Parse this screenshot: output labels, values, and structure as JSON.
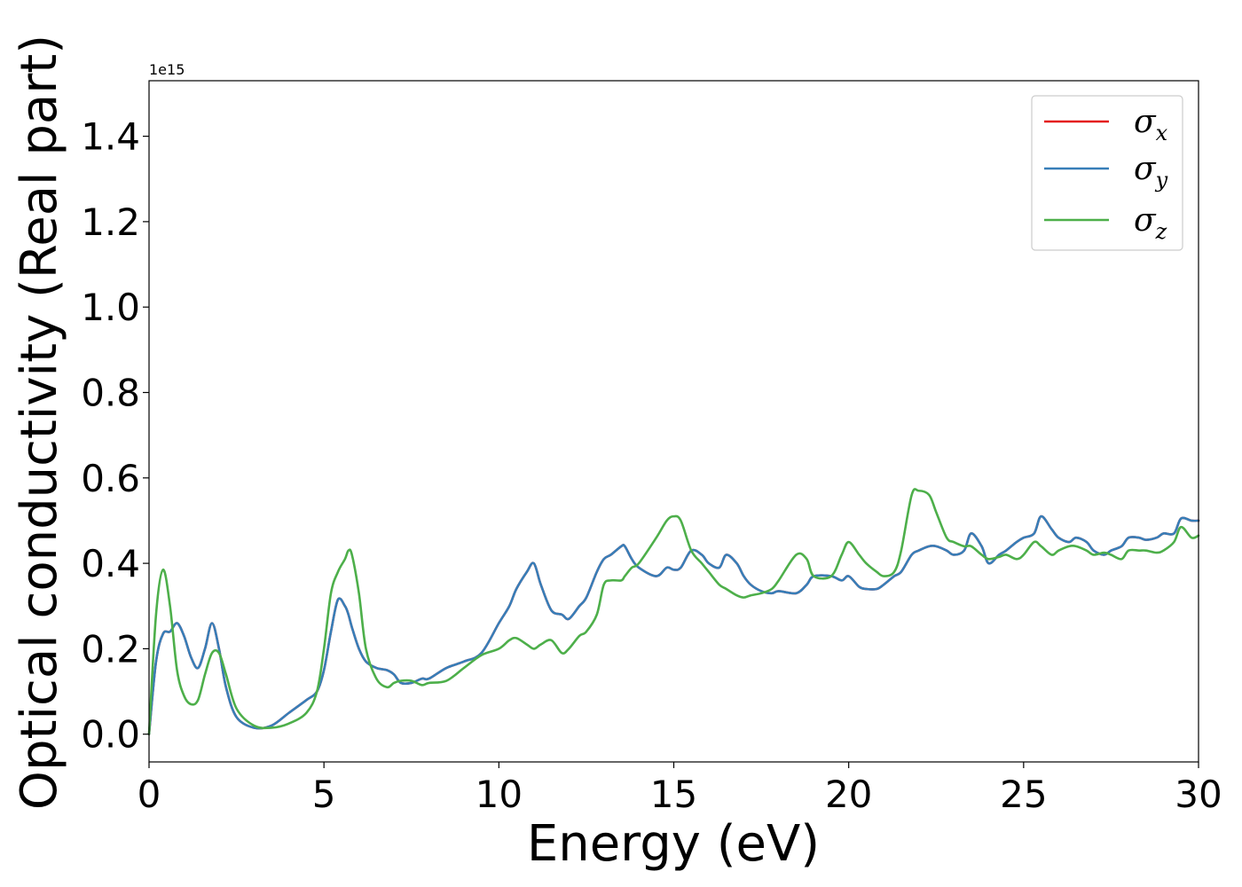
{
  "chart_data": {
    "type": "line",
    "title": "",
    "xlabel": "Energy (eV)",
    "ylabel": "Optical conductivity (Real part)",
    "y_offset_label": "1e15",
    "xlim": [
      0,
      30
    ],
    "ylim": [
      -0.065,
      1.53
    ],
    "x_ticks": [
      0,
      5,
      10,
      15,
      20,
      25,
      30
    ],
    "x_tick_labels": [
      "0",
      "5",
      "10",
      "15",
      "20",
      "25",
      "30"
    ],
    "y_ticks": [
      0.0,
      0.2,
      0.4,
      0.6,
      0.8,
      1.0,
      1.2,
      1.4
    ],
    "y_tick_labels": [
      "0.0",
      "0.2",
      "0.4",
      "0.6",
      "0.8",
      "1.0",
      "1.2",
      "1.4"
    ],
    "grid": false,
    "legend_position": "top-right",
    "x": [
      0,
      0.2,
      0.4,
      0.6,
      0.8,
      1.0,
      1.2,
      1.4,
      1.6,
      1.8,
      2.0,
      2.2,
      2.5,
      3.0,
      3.5,
      4.0,
      4.5,
      4.8,
      5.0,
      5.2,
      5.4,
      5.6,
      5.7,
      5.8,
      6.0,
      6.2,
      6.5,
      6.8,
      7.0,
      7.2,
      7.5,
      7.8,
      8.0,
      8.5,
      9.0,
      9.5,
      10.0,
      10.3,
      10.5,
      10.8,
      11.0,
      11.2,
      11.5,
      11.8,
      12.0,
      12.3,
      12.5,
      12.8,
      13.0,
      13.2,
      13.5,
      13.6,
      13.8,
      14.0,
      14.5,
      14.8,
      15.0,
      15.2,
      15.5,
      15.8,
      16.0,
      16.3,
      16.5,
      16.8,
      17.0,
      17.2,
      17.5,
      17.8,
      18.0,
      18.5,
      18.8,
      19.0,
      19.5,
      19.8,
      20.0,
      20.3,
      20.5,
      20.8,
      21.0,
      21.3,
      21.5,
      21.8,
      22.0,
      22.3,
      22.5,
      22.8,
      23.0,
      23.3,
      23.5,
      23.8,
      24.0,
      24.3,
      24.5,
      24.8,
      25.0,
      25.3,
      25.5,
      25.8,
      26.0,
      26.3,
      26.5,
      26.8,
      27.0,
      27.3,
      27.5,
      27.8,
      28.0,
      28.3,
      28.5,
      28.8,
      29.0,
      29.3,
      29.5,
      29.8,
      30.0
    ],
    "series": [
      {
        "name": "σx",
        "color": "#e41a1c",
        "values": [
          0.0,
          0.17,
          0.235,
          0.24,
          0.26,
          0.23,
          0.18,
          0.155,
          0.2,
          0.26,
          0.2,
          0.11,
          0.04,
          0.015,
          0.02,
          0.05,
          0.08,
          0.1,
          0.15,
          0.24,
          0.315,
          0.3,
          0.28,
          0.25,
          0.2,
          0.17,
          0.155,
          0.15,
          0.14,
          0.12,
          0.12,
          0.13,
          0.13,
          0.155,
          0.17,
          0.19,
          0.26,
          0.3,
          0.34,
          0.38,
          0.4,
          0.35,
          0.29,
          0.28,
          0.27,
          0.3,
          0.32,
          0.38,
          0.41,
          0.42,
          0.44,
          0.44,
          0.41,
          0.39,
          0.37,
          0.39,
          0.385,
          0.39,
          0.43,
          0.42,
          0.4,
          0.39,
          0.42,
          0.4,
          0.37,
          0.35,
          0.335,
          0.33,
          0.335,
          0.33,
          0.35,
          0.37,
          0.37,
          0.36,
          0.37,
          0.345,
          0.34,
          0.34,
          0.35,
          0.37,
          0.38,
          0.42,
          0.43,
          0.44,
          0.44,
          0.43,
          0.42,
          0.43,
          0.47,
          0.44,
          0.4,
          0.42,
          0.43,
          0.45,
          0.46,
          0.47,
          0.51,
          0.48,
          0.46,
          0.45,
          0.46,
          0.45,
          0.43,
          0.42,
          0.43,
          0.44,
          0.46,
          0.46,
          0.455,
          0.46,
          0.47,
          0.47,
          0.505,
          0.5,
          0.5
        ]
      },
      {
        "name": "σy",
        "color": "#377eb8",
        "values": [
          0.0,
          0.17,
          0.235,
          0.24,
          0.26,
          0.23,
          0.18,
          0.155,
          0.2,
          0.26,
          0.2,
          0.11,
          0.04,
          0.015,
          0.02,
          0.05,
          0.08,
          0.1,
          0.15,
          0.24,
          0.315,
          0.3,
          0.28,
          0.25,
          0.2,
          0.17,
          0.155,
          0.15,
          0.14,
          0.12,
          0.12,
          0.13,
          0.13,
          0.155,
          0.17,
          0.19,
          0.26,
          0.3,
          0.34,
          0.38,
          0.4,
          0.35,
          0.29,
          0.28,
          0.27,
          0.3,
          0.32,
          0.38,
          0.41,
          0.42,
          0.44,
          0.44,
          0.41,
          0.39,
          0.37,
          0.39,
          0.385,
          0.39,
          0.43,
          0.42,
          0.4,
          0.39,
          0.42,
          0.4,
          0.37,
          0.35,
          0.335,
          0.33,
          0.335,
          0.33,
          0.35,
          0.37,
          0.37,
          0.36,
          0.37,
          0.345,
          0.34,
          0.34,
          0.35,
          0.37,
          0.38,
          0.42,
          0.43,
          0.44,
          0.44,
          0.43,
          0.42,
          0.43,
          0.47,
          0.44,
          0.4,
          0.42,
          0.43,
          0.45,
          0.46,
          0.47,
          0.51,
          0.48,
          0.46,
          0.45,
          0.46,
          0.45,
          0.43,
          0.42,
          0.43,
          0.44,
          0.46,
          0.46,
          0.455,
          0.46,
          0.47,
          0.47,
          0.505,
          0.5,
          0.5
        ]
      },
      {
        "name": "σz",
        "color": "#4daf4a",
        "values": [
          0.0,
          0.28,
          0.385,
          0.3,
          0.15,
          0.09,
          0.07,
          0.08,
          0.14,
          0.19,
          0.19,
          0.14,
          0.06,
          0.02,
          0.015,
          0.025,
          0.05,
          0.1,
          0.2,
          0.33,
          0.38,
          0.41,
          0.43,
          0.42,
          0.33,
          0.2,
          0.13,
          0.11,
          0.12,
          0.125,
          0.125,
          0.115,
          0.12,
          0.125,
          0.155,
          0.185,
          0.2,
          0.22,
          0.225,
          0.21,
          0.2,
          0.21,
          0.22,
          0.19,
          0.2,
          0.23,
          0.24,
          0.28,
          0.35,
          0.36,
          0.36,
          0.37,
          0.39,
          0.4,
          0.46,
          0.5,
          0.51,
          0.5,
          0.43,
          0.4,
          0.38,
          0.35,
          0.34,
          0.325,
          0.32,
          0.325,
          0.33,
          0.34,
          0.36,
          0.42,
          0.41,
          0.37,
          0.37,
          0.42,
          0.45,
          0.42,
          0.4,
          0.38,
          0.37,
          0.38,
          0.43,
          0.56,
          0.57,
          0.56,
          0.52,
          0.46,
          0.45,
          0.44,
          0.44,
          0.42,
          0.41,
          0.415,
          0.42,
          0.41,
          0.42,
          0.45,
          0.44,
          0.42,
          0.43,
          0.44,
          0.44,
          0.43,
          0.42,
          0.425,
          0.42,
          0.41,
          0.43,
          0.43,
          0.43,
          0.425,
          0.43,
          0.45,
          0.485,
          0.46,
          0.465
        ]
      }
    ]
  },
  "legend": {
    "entries": [
      {
        "symbol": "σ",
        "sub": "x",
        "color": "#e41a1c"
      },
      {
        "symbol": "σ",
        "sub": "y",
        "color": "#377eb8"
      },
      {
        "symbol": "σ",
        "sub": "z",
        "color": "#4daf4a"
      }
    ]
  }
}
